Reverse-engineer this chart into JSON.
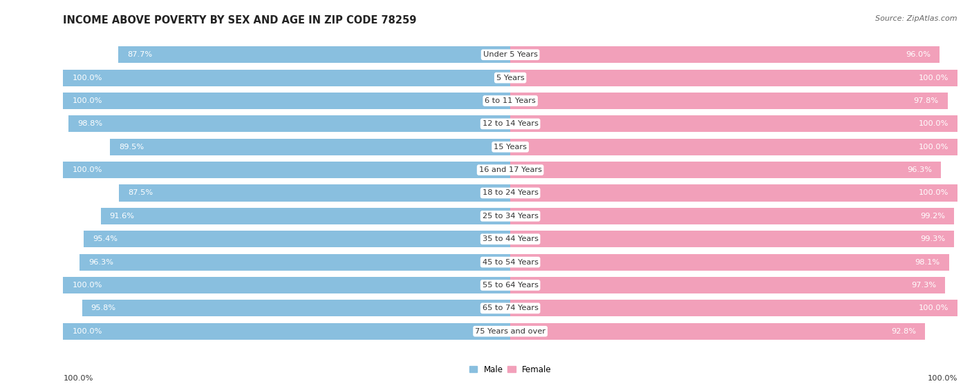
{
  "title": "INCOME ABOVE POVERTY BY SEX AND AGE IN ZIP CODE 78259",
  "source": "Source: ZipAtlas.com",
  "categories": [
    "Under 5 Years",
    "5 Years",
    "6 to 11 Years",
    "12 to 14 Years",
    "15 Years",
    "16 and 17 Years",
    "18 to 24 Years",
    "25 to 34 Years",
    "35 to 44 Years",
    "45 to 54 Years",
    "55 to 64 Years",
    "65 to 74 Years",
    "75 Years and over"
  ],
  "male_values": [
    87.7,
    100.0,
    100.0,
    98.8,
    89.5,
    100.0,
    87.5,
    91.6,
    95.4,
    96.3,
    100.0,
    95.8,
    100.0
  ],
  "female_values": [
    96.0,
    100.0,
    97.8,
    100.0,
    100.0,
    96.3,
    100.0,
    99.2,
    99.3,
    98.1,
    97.3,
    100.0,
    92.8
  ],
  "male_color": "#89BFDF",
  "female_color": "#F2A0BA",
  "background_color": "#ffffff",
  "title_fontsize": 10.5,
  "label_fontsize": 8.2,
  "cat_fontsize": 8.2,
  "legend_fontsize": 8.5,
  "source_fontsize": 8,
  "footer_male": "100.0%",
  "footer_female": "100.0%"
}
